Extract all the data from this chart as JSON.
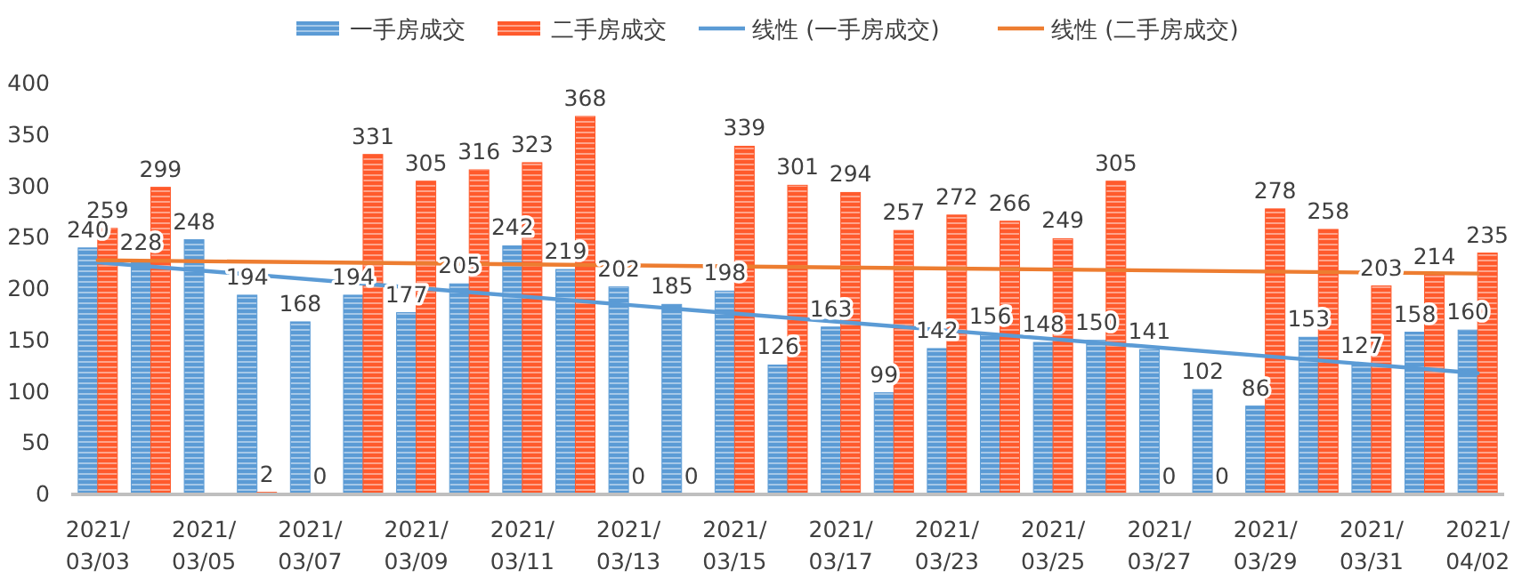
{
  "chart_data": {
    "type": "bar",
    "categories": [
      "2021/\n03/03",
      null,
      "2021/\n03/05",
      null,
      "2021/\n03/07",
      null,
      "2021/\n03/09",
      null,
      "2021/\n03/11",
      null,
      "2021/\n03/13",
      null,
      "2021/\n03/15",
      null,
      "2021/\n03/17",
      null,
      "2021/\n03/23",
      null,
      "2021/\n03/25",
      null,
      "2021/\n03/27",
      null,
      "2021/\n03/29",
      null,
      "2021/\n03/31",
      null,
      "2021/\n04/02"
    ],
    "series": [
      {
        "name": "一手房成交",
        "type": "bar",
        "color": "#5b9bd5",
        "values": [
          240,
          228,
          248,
          194,
          168,
          194,
          177,
          205,
          242,
          219,
          202,
          185,
          198,
          126,
          163,
          99,
          142,
          156,
          148,
          150,
          141,
          102,
          86,
          153,
          127,
          158,
          160
        ],
        "value_labels": [
          "240",
          "228",
          "248",
          "194",
          "168",
          "194",
          "177",
          "205",
          "242",
          "219",
          "202",
          "185",
          "198",
          "126",
          "163",
          "99",
          "142",
          "156",
          "148",
          "150",
          "141",
          "102",
          "86",
          "153",
          "127",
          "158",
          "160"
        ]
      },
      {
        "name": "二手房成交",
        "type": "bar",
        "color": "#ff5a2c",
        "values": [
          259,
          299,
          null,
          2,
          0,
          331,
          305,
          316,
          323,
          368,
          0,
          0,
          339,
          301,
          294,
          257,
          272,
          266,
          249,
          305,
          0,
          0,
          278,
          258,
          203,
          214,
          235
        ],
        "value_labels": [
          "259",
          "299",
          null,
          "2",
          "0",
          "331",
          "305",
          "316",
          "323",
          "368",
          "0",
          "0",
          "339",
          "301",
          "294",
          "257",
          "272",
          "266",
          "249",
          "305",
          "0",
          "0",
          "278",
          "258",
          "203",
          "214",
          "235"
        ]
      },
      {
        "name": "线性 (一手房成交)",
        "type": "line",
        "color": "#5b9bd5",
        "x": [
          "2021/\n03/03",
          "2021/\n04/02"
        ],
        "values": [
          226,
          118
        ]
      },
      {
        "name": "线性 (二手房成交)",
        "type": "line",
        "color": "#ed7d31",
        "x": [
          "2021/\n03/03",
          "2021/\n04/02"
        ],
        "values": [
          228,
          215
        ]
      }
    ],
    "ylim": [
      0,
      400
    ],
    "yticks": [
      0,
      50,
      100,
      150,
      200,
      250,
      300,
      350,
      400
    ],
    "legend": "top",
    "grid": false
  }
}
